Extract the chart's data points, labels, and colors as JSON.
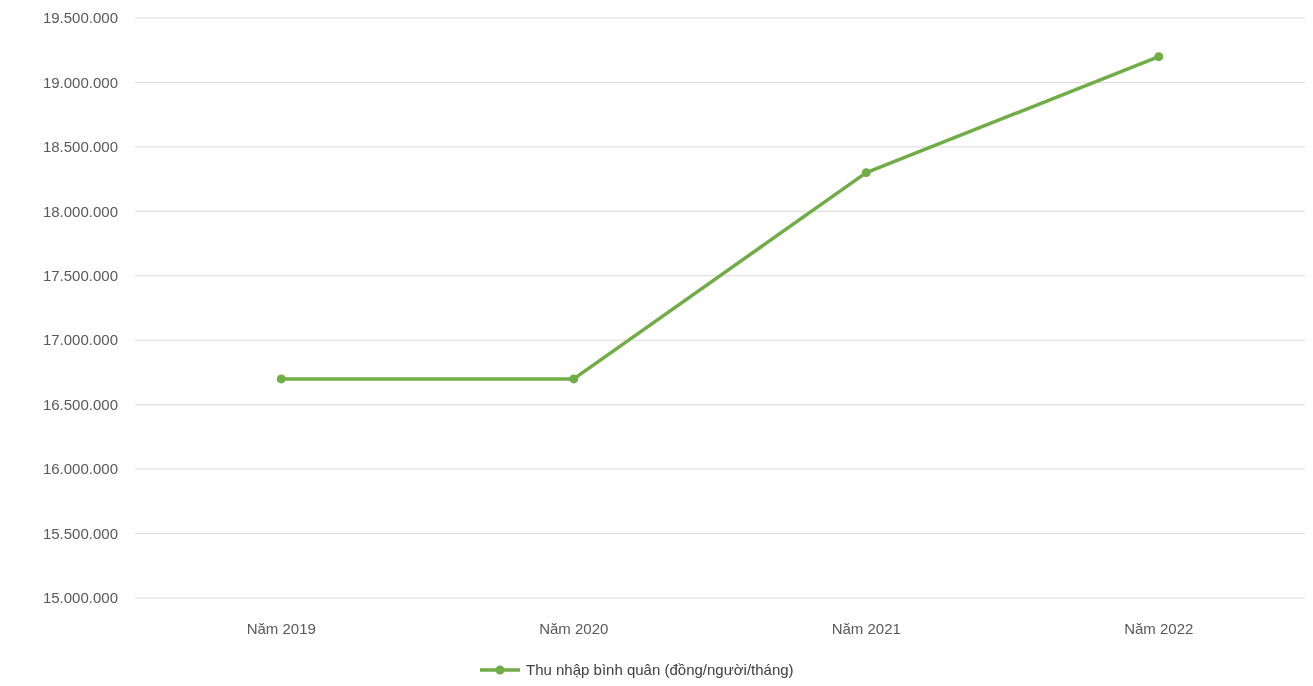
{
  "chart_data": {
    "type": "line",
    "categories": [
      "Năm 2019",
      "Năm 2020",
      "Năm 2021",
      "Năm 2022"
    ],
    "series": [
      {
        "name": "Thu nhập bình quân (đồng/người/tháng)",
        "color": "#70ad47",
        "values": [
          16700000,
          16700000,
          18300000,
          19200000
        ]
      }
    ],
    "ylim": [
      15000000,
      19500000
    ],
    "yticks": [
      {
        "value": 15000000,
        "label": "15.000.000"
      },
      {
        "value": 15500000,
        "label": "15.500.000"
      },
      {
        "value": 16000000,
        "label": "16.000.000"
      },
      {
        "value": 16500000,
        "label": "16.500.000"
      },
      {
        "value": 17000000,
        "label": "17.000.000"
      },
      {
        "value": 17500000,
        "label": "17.500.000"
      },
      {
        "value": 18000000,
        "label": "18.000.000"
      },
      {
        "value": 18500000,
        "label": "18.500.000"
      },
      {
        "value": 19000000,
        "label": "19.000.000"
      },
      {
        "value": 19500000,
        "label": "19.500.000"
      }
    ],
    "grid": "y",
    "legend": "bottom",
    "marker": "circle",
    "line_style": "solid"
  }
}
